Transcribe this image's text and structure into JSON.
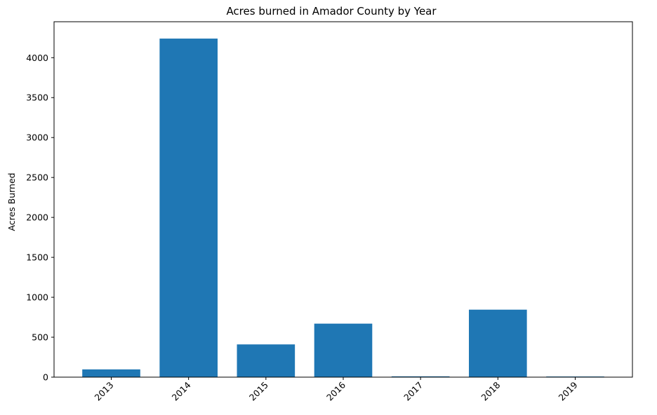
{
  "chart_data": {
    "type": "bar",
    "title": "Acres burned in Amador County by Year",
    "xlabel": "",
    "ylabel": "Acres Burned",
    "categories": [
      "2013",
      "2014",
      "2015",
      "2016",
      "2017",
      "2018",
      "2019"
    ],
    "values": [
      97,
      4239,
      410,
      670,
      10,
      845,
      8
    ],
    "ylim": [
      0,
      4450
    ],
    "yticks": [
      0,
      500,
      1000,
      1500,
      2000,
      2500,
      3000,
      3500,
      4000
    ],
    "x_tick_rotation_deg": 45,
    "grid": false,
    "legend": "none",
    "bar_color": "#1f77b4"
  }
}
